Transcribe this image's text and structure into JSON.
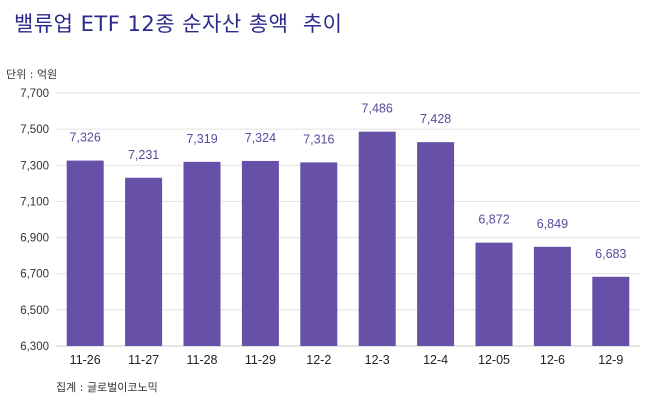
{
  "title": "밸류업 ETF 12종 순자산 총액  추이",
  "unit_label": "단위 : 억원",
  "source_label": "집계 : 글로벌이코노믹",
  "colors": {
    "bar": "#6650a8",
    "title": "#2b2a8c",
    "value_label": "#5a4a9c",
    "grid": "#e2e2e2"
  },
  "chart_data": {
    "type": "bar",
    "categories": [
      "11-26",
      "11-27",
      "11-28",
      "11-29",
      "12-2",
      "12-3",
      "12-4",
      "12-05",
      "12-6",
      "12-9"
    ],
    "values": [
      7326,
      7231,
      7319,
      7324,
      7316,
      7486,
      7428,
      6872,
      6849,
      6683
    ],
    "value_labels": [
      "7,326",
      "7,231",
      "7,319",
      "7,324",
      "7,316",
      "7,486",
      "7,428",
      "6,872",
      "6,849",
      "6,683"
    ],
    "y_ticks": [
      6300,
      6500,
      6700,
      6900,
      7100,
      7300,
      7500,
      7700
    ],
    "y_tick_labels": [
      "6,300",
      "6,500",
      "6,700",
      "6,900",
      "7,100",
      "7,300",
      "7,500",
      "7,700"
    ],
    "ylim": [
      6300,
      7700
    ],
    "xlabel": "",
    "ylabel": "",
    "grid": true
  }
}
